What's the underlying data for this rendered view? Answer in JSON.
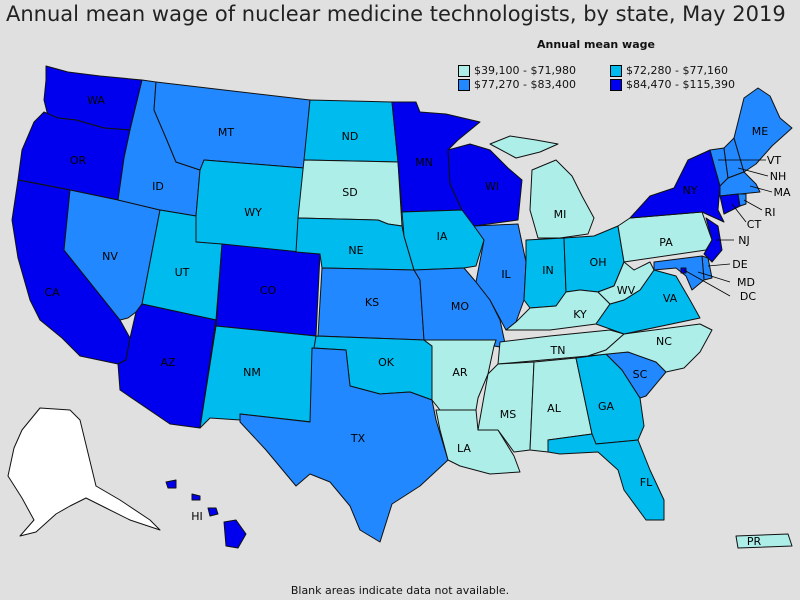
{
  "title": "Annual mean wage of nuclear medicine technologists, by state, May 2019",
  "legend": {
    "title": "Annual mean wage",
    "items": [
      {
        "label": "$39,100 - $71,980",
        "color": "#aeeee8"
      },
      {
        "label": "$72,280 - $77,160",
        "color": "#00bbee"
      },
      {
        "label": "$77,270 - $83,400",
        "color": "#2288ff"
      },
      {
        "label": "$84,470 - $115,390",
        "color": "#0000ee"
      }
    ]
  },
  "no_data_color": "#ffffff",
  "footnote": "Blank areas indicate data not available.",
  "states": {
    "WA": {
      "label": "WA",
      "tier": 3
    },
    "OR": {
      "label": "OR",
      "tier": 3
    },
    "CA": {
      "label": "CA",
      "tier": 3
    },
    "NV": {
      "label": "NV",
      "tier": 2
    },
    "ID": {
      "label": "ID",
      "tier": 2
    },
    "MT": {
      "label": "MT",
      "tier": 2
    },
    "WY": {
      "label": "WY",
      "tier": 1
    },
    "UT": {
      "label": "UT",
      "tier": 1
    },
    "AZ": {
      "label": "AZ",
      "tier": 3
    },
    "CO": {
      "label": "CO",
      "tier": 3
    },
    "NM": {
      "label": "NM",
      "tier": 1
    },
    "ND": {
      "label": "ND",
      "tier": 1
    },
    "SD": {
      "label": "SD",
      "tier": 0
    },
    "NE": {
      "label": "NE",
      "tier": 1
    },
    "KS": {
      "label": "KS",
      "tier": 2
    },
    "OK": {
      "label": "OK",
      "tier": 1
    },
    "TX": {
      "label": "TX",
      "tier": 2
    },
    "MN": {
      "label": "MN",
      "tier": 3
    },
    "IA": {
      "label": "IA",
      "tier": 1
    },
    "MO": {
      "label": "MO",
      "tier": 2
    },
    "AR": {
      "label": "AR",
      "tier": 0
    },
    "LA": {
      "label": "LA",
      "tier": 0
    },
    "WI": {
      "label": "WI",
      "tier": 3
    },
    "IL": {
      "label": "IL",
      "tier": 2
    },
    "MI": {
      "label": "MI",
      "tier": 0
    },
    "IN": {
      "label": "IN",
      "tier": 1
    },
    "OH": {
      "label": "OH",
      "tier": 1
    },
    "KY": {
      "label": "KY",
      "tier": 0
    },
    "TN": {
      "label": "TN",
      "tier": 0
    },
    "MS": {
      "label": "MS",
      "tier": 0
    },
    "AL": {
      "label": "AL",
      "tier": 0
    },
    "GA": {
      "label": "GA",
      "tier": 1
    },
    "FL": {
      "label": "FL",
      "tier": 1
    },
    "SC": {
      "label": "SC",
      "tier": 2
    },
    "NC": {
      "label": "NC",
      "tier": 0
    },
    "VA": {
      "label": "VA",
      "tier": 1
    },
    "WV": {
      "label": "WV",
      "tier": 0
    },
    "PA": {
      "label": "PA",
      "tier": 0
    },
    "NY": {
      "label": "NY",
      "tier": 3
    },
    "ME": {
      "label": "ME",
      "tier": 2
    },
    "VT": {
      "label": "VT",
      "tier": 2
    },
    "NH": {
      "label": "NH",
      "tier": 2
    },
    "MA": {
      "label": "MA",
      "tier": 2
    },
    "RI": {
      "label": "RI",
      "tier": 2
    },
    "CT": {
      "label": "CT",
      "tier": 3
    },
    "NJ": {
      "label": "NJ",
      "tier": 3
    },
    "DE": {
      "label": "DE",
      "tier": 2
    },
    "MD": {
      "label": "MD",
      "tier": 2
    },
    "DC": {
      "label": "DC",
      "tier": 3
    },
    "AK": {
      "label": "",
      "tier": null
    },
    "HI": {
      "label": "HI",
      "tier": 3
    },
    "PR": {
      "label": "PR",
      "tier": 0
    }
  }
}
